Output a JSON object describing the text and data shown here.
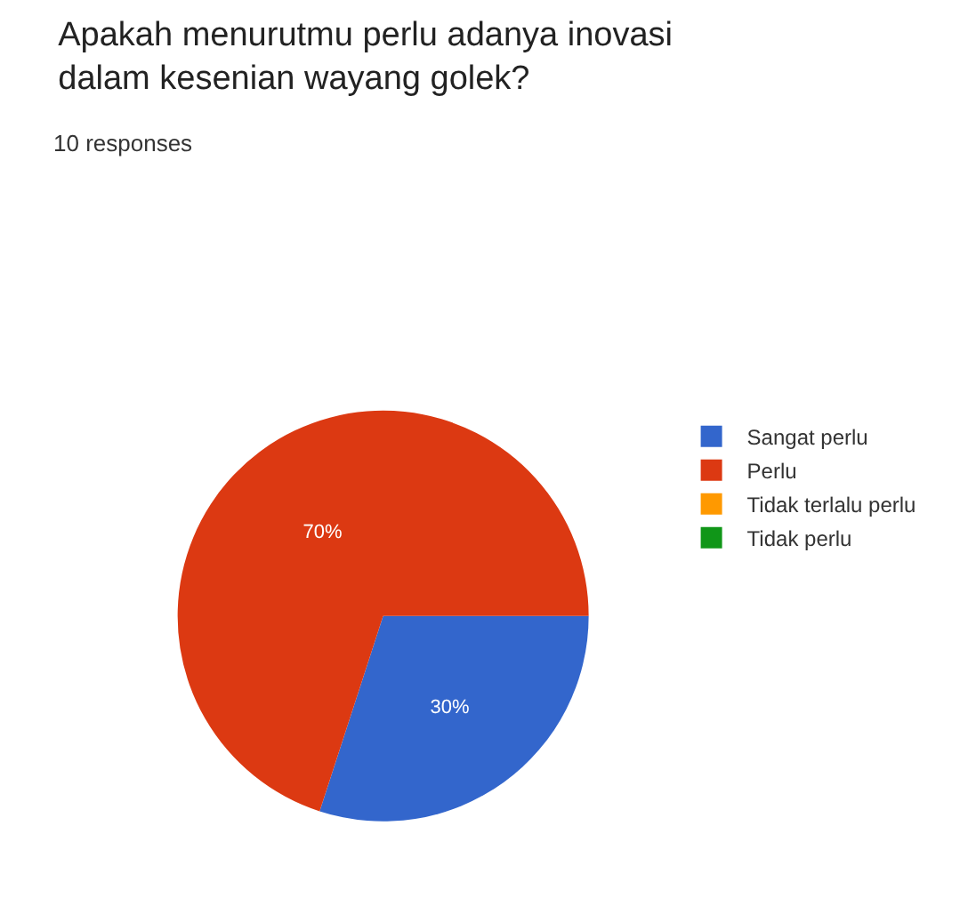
{
  "chart_data": {
    "type": "pie",
    "title": "Apakah menurutmu perlu adanya inovasi dalam kesenian wayang golek?",
    "subtitle": "10 responses",
    "categories": [
      "Sangat perlu",
      "Perlu",
      "Tidak terlalu perlu",
      "Tidak perlu"
    ],
    "values": [
      30,
      70,
      0,
      0
    ],
    "colors": [
      "#3366cc",
      "#dc3912",
      "#ff9900",
      "#109618"
    ],
    "value_labels": [
      "30%",
      "70%",
      null,
      null
    ],
    "legend": "right"
  }
}
